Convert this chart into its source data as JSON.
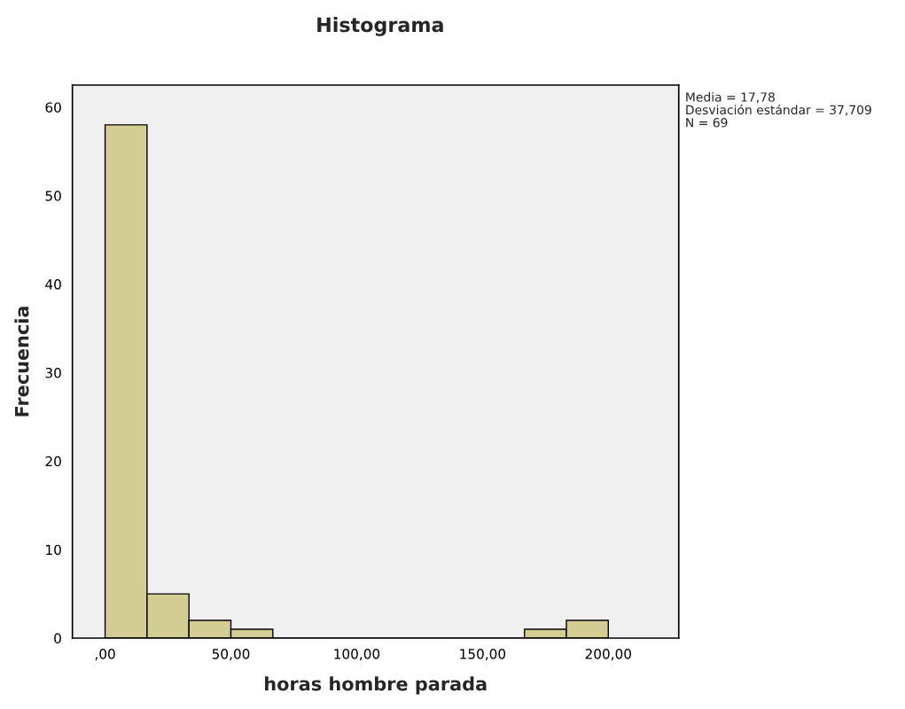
{
  "chart_data": {
    "type": "histogram",
    "title": "Histograma",
    "xlabel": "horas hombre parada",
    "ylabel": "Frecuencia",
    "bins": [
      0,
      16.667,
      33.333,
      50,
      66.667,
      83.333,
      100,
      116.667,
      133.333,
      150,
      166.667,
      183.333,
      200
    ],
    "values": [
      58,
      5,
      2,
      1,
      0,
      0,
      0,
      0,
      0,
      0,
      1,
      2
    ],
    "color": "#d3cd94",
    "xlim": [
      -13,
      228
    ],
    "ylim": [
      0,
      62.5
    ],
    "xticks": [
      {
        "value": 0,
        "label": ",00"
      },
      {
        "value": 50,
        "label": "50,00"
      },
      {
        "value": 100,
        "label": "100,00"
      },
      {
        "value": 150,
        "label": "150,00"
      },
      {
        "value": 200,
        "label": "200,00"
      }
    ],
    "yticks": [
      0,
      10,
      20,
      30,
      40,
      50,
      60
    ],
    "grid": false,
    "annotations": [
      "Media = 17,78",
      "Desviación estándar = 37,709",
      "N = 69"
    ]
  }
}
